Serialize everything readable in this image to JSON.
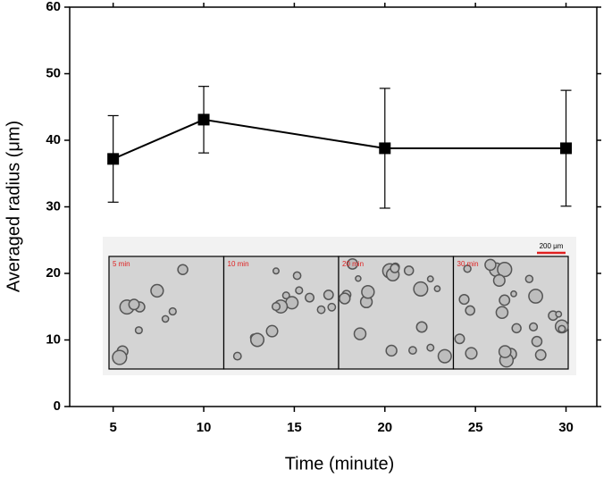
{
  "chart_data": {
    "type": "errorbar-line",
    "x_label": "Time (minute)",
    "y_label": "Averaged radius (μm)",
    "x": [
      5,
      10,
      20,
      30
    ],
    "values": [
      37.2,
      43.1,
      38.8,
      38.8
    ],
    "errors": [
      6.5,
      5.0,
      9.0,
      8.7
    ],
    "color": "#000000",
    "xlim": [
      2.6,
      31.7
    ],
    "xticks": [
      5,
      10,
      15,
      20,
      25,
      30
    ],
    "ylim": [
      0,
      60
    ],
    "yticks": [
      0,
      10,
      20,
      30,
      40,
      50,
      60
    ],
    "inset": {
      "labels": [
        "5 min",
        "10 min",
        "20 min",
        "30 min"
      ],
      "scale_bar": "200 μm"
    }
  }
}
